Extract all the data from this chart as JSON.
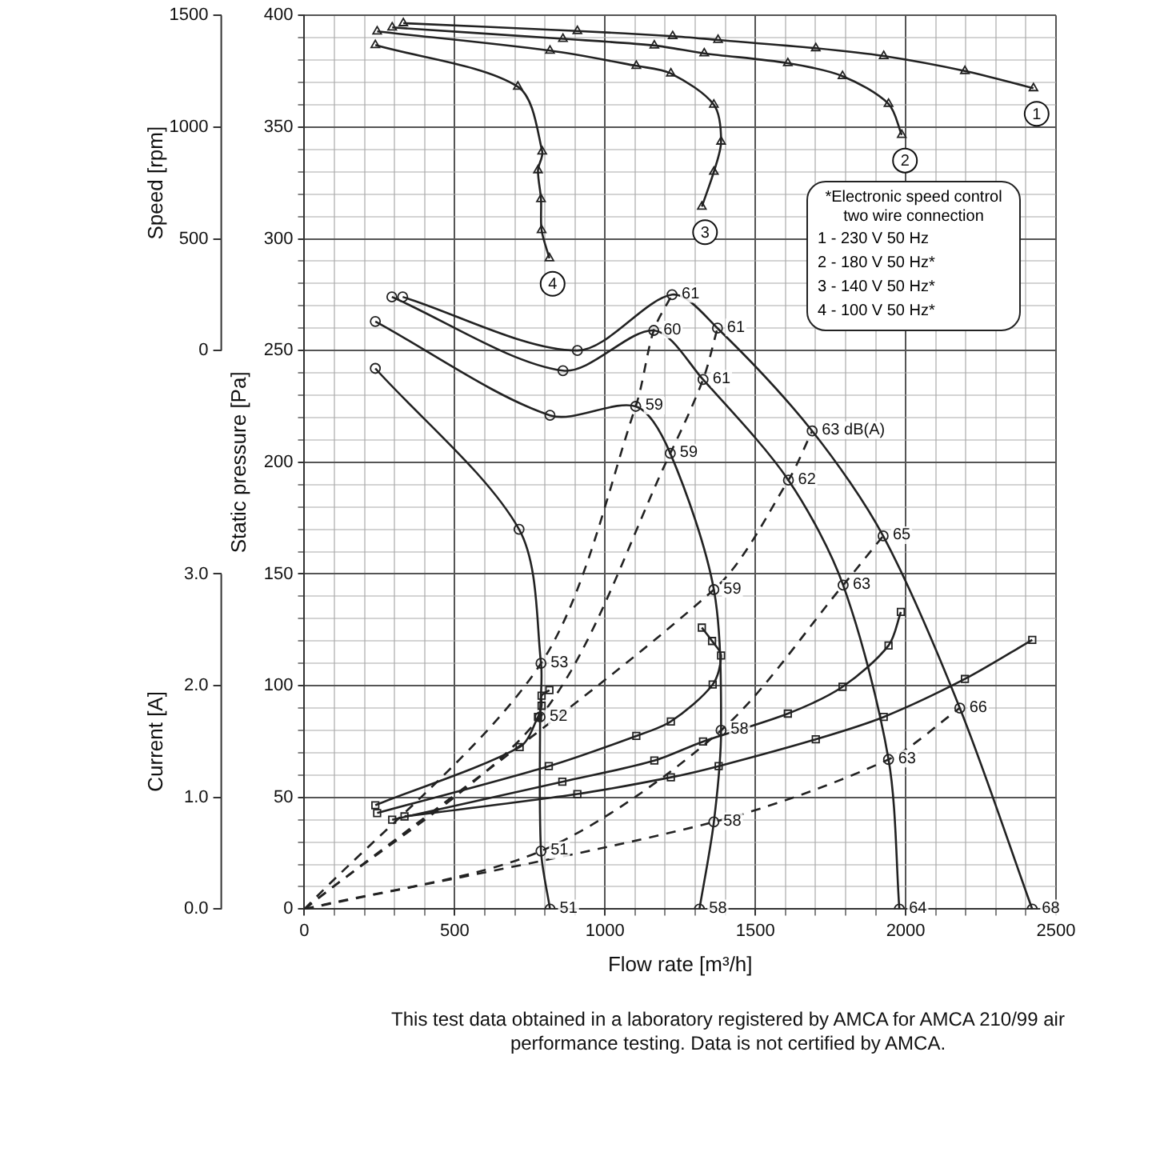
{
  "chart_data": {
    "type": "line",
    "xlabel": "Flow rate [m³/h]",
    "ylabel": "Static pressure [Pa]",
    "y2label": "Speed [rpm]",
    "y3label": "Current [A]",
    "xlim": [
      0,
      2500
    ],
    "xticks": [
      0,
      {
        "value": 100,
        "label": null
      },
      {
        "value": 200,
        "label": null
      },
      {
        "value": 300,
        "label": null
      },
      {
        "value": 400,
        "label": null
      },
      500,
      {
        "value": 600,
        "label": null
      },
      {
        "value": 700,
        "label": null
      },
      {
        "value": 800,
        "label": null
      },
      {
        "value": 900,
        "label": null
      },
      1000,
      {
        "value": 1100,
        "label": null
      },
      {
        "value": 1200,
        "label": null
      },
      {
        "value": 1300,
        "label": null
      },
      {
        "value": 1400,
        "label": null
      },
      1500,
      {
        "value": 1600,
        "label": null
      },
      {
        "value": 1700,
        "label": null
      },
      {
        "value": 1800,
        "label": null
      },
      {
        "value": 1900,
        "label": null
      },
      2000,
      {
        "value": 2100,
        "label": null
      },
      {
        "value": 2200,
        "label": null
      },
      {
        "value": 2300,
        "label": null
      },
      {
        "value": 2400,
        "label": null
      },
      2500
    ],
    "ylim": [
      0,
      400
    ],
    "yticks": [
      0,
      {
        "value": 10,
        "label": null
      },
      {
        "value": 20,
        "label": null
      },
      {
        "value": 30,
        "label": null
      },
      {
        "value": 40,
        "label": null
      },
      50,
      {
        "value": 60,
        "label": null
      },
      {
        "value": 70,
        "label": null
      },
      {
        "value": 80,
        "label": null
      },
      {
        "value": 90,
        "label": null
      },
      100,
      {
        "value": 110,
        "label": null
      },
      {
        "value": 120,
        "label": null
      },
      {
        "value": 130,
        "label": null
      },
      {
        "value": 140,
        "label": null
      },
      150,
      {
        "value": 160,
        "label": null
      },
      {
        "value": 170,
        "label": null
      },
      {
        "value": 180,
        "label": null
      },
      {
        "value": 190,
        "label": null
      },
      200,
      {
        "value": 210,
        "label": null
      },
      {
        "value": 220,
        "label": null
      },
      {
        "value": 230,
        "label": null
      },
      {
        "value": 240,
        "label": null
      },
      250,
      {
        "value": 260,
        "label": null
      },
      {
        "value": 270,
        "label": null
      },
      {
        "value": 280,
        "label": null
      },
      {
        "value": 290,
        "label": null
      },
      300,
      {
        "value": 310,
        "label": null
      },
      {
        "value": 320,
        "label": null
      },
      {
        "value": 330,
        "label": null
      },
      {
        "value": 340,
        "label": null
      },
      350,
      {
        "value": 360,
        "label": null
      },
      {
        "value": 370,
        "label": null
      },
      {
        "value": 380,
        "label": null
      },
      {
        "value": 390,
        "label": null
      },
      400
    ],
    "y2lim": [
      -2500,
      1500
    ],
    "y2ticks": [
      0,
      500,
      1000,
      1500
    ],
    "y3lim": [
      0,
      8
    ],
    "y3ticks": [
      {
        "value": 0,
        "label": "0.0"
      },
      {
        "value": 1,
        "label": "1.0"
      },
      {
        "value": 2,
        "label": "2.0"
      },
      {
        "value": 3,
        "label": "3.0"
      }
    ],
    "grid": true,
    "legend": false,
    "series": [
      {
        "color": "#222222",
        "marker": "circle",
        "line_style": "solid",
        "x": [
          327,
          908,
          1223,
          1374,
          1689,
          1925,
          2180,
          2421
        ],
        "values": [
          274,
          250,
          275,
          260,
          214,
          167,
          90,
          0
        ]
      },
      {
        "color": "#222222",
        "marker": "circle",
        "line_style": "solid",
        "x": [
          291,
          860,
          1162,
          1326,
          1610,
          1792,
          1943,
          1979
        ],
        "values": [
          274,
          241,
          259,
          237,
          192,
          145,
          67,
          0
        ]
      },
      {
        "color": "#222222",
        "marker": "circle",
        "line_style": "solid",
        "x": [
          236,
          817,
          1102,
          1217,
          1362,
          1386,
          1362,
          1314
        ],
        "values": [
          263,
          221,
          225,
          204,
          143,
          80,
          39,
          0
        ]
      },
      {
        "color": "#222222",
        "marker": "circle",
        "line_style": "solid",
        "x": [
          236,
          714,
          787,
          784,
          787,
          817
        ],
        "values": [
          242,
          170,
          110,
          86,
          26,
          0
        ]
      },
      {
        "color": "#222222",
        "marker": "none",
        "line_style": "dashed",
        "x": [
          0,
          787,
          1102,
          1162,
          1223
        ],
        "values": [
          0,
          110,
          225,
          259,
          275
        ]
      },
      {
        "color": "#222222",
        "marker": "none",
        "line_style": "dashed",
        "x": [
          0,
          784,
          1217,
          1326,
          1374
        ],
        "values": [
          0,
          86,
          204,
          237,
          260
        ]
      },
      {
        "color": "#222222",
        "marker": "none",
        "line_style": "dashed",
        "x": [
          0,
          1362,
          1610,
          1689
        ],
        "values": [
          0,
          143,
          192,
          214
        ]
      },
      {
        "color": "#222222",
        "marker": "none",
        "line_style": "dashed",
        "x": [
          0,
          787,
          1386,
          1792,
          1925
        ],
        "values": [
          0,
          26,
          80,
          145,
          167
        ]
      },
      {
        "color": "#222222",
        "marker": "none",
        "line_style": "dashed",
        "x": [
          0,
          1362,
          1943,
          2180
        ],
        "values": [
          0,
          39,
          67,
          90
        ]
      },
      {
        "name": "1",
        "axis": "y2",
        "color": "#222222",
        "marker": "triangle",
        "line_style": "solid",
        "x": [
          329,
          908,
          1225,
          1376,
          1701,
          1927,
          2197,
          2425
        ],
        "values": [
          1465,
          1430,
          1407,
          1390,
          1353,
          1318,
          1251,
          1174
        ]
      },
      {
        "name": "2",
        "axis": "y2",
        "color": "#222222",
        "marker": "triangle",
        "line_style": "solid",
        "x": [
          292,
          860,
          1164,
          1330,
          1608,
          1790,
          1943,
          1987
        ],
        "values": [
          1446,
          1395,
          1365,
          1330,
          1286,
          1228,
          1104,
          965
        ]
      },
      {
        "name": "3",
        "axis": "y2",
        "color": "#222222",
        "marker": "triangle",
        "line_style": "solid",
        "x": [
          242,
          817,
          1104,
          1219,
          1362,
          1386,
          1362,
          1322
        ],
        "values": [
          1428,
          1342,
          1274,
          1240,
          1100,
          935,
          800,
          644
        ]
      },
      {
        "name": "4",
        "axis": "y2",
        "color": "#222222",
        "marker": "triangle",
        "line_style": "solid",
        "x": [
          236,
          710,
          791,
          777,
          787,
          789,
          815
        ],
        "values": [
          1367,
          1181,
          891,
          807,
          678,
          539,
          413
        ]
      },
      {
        "axis": "y3",
        "color": "#222222",
        "marker": "square",
        "line_style": "solid",
        "x": [
          333,
          908,
          1219,
          1378,
          1701,
          1927,
          2197,
          2421
        ],
        "values": [
          0.83,
          1.03,
          1.18,
          1.28,
          1.52,
          1.72,
          2.06,
          2.41
        ]
      },
      {
        "axis": "y3",
        "color": "#222222",
        "marker": "square",
        "line_style": "solid",
        "x": [
          292,
          858,
          1164,
          1326,
          1608,
          1790,
          1943,
          1984
        ],
        "values": [
          0.8,
          1.14,
          1.33,
          1.5,
          1.75,
          1.99,
          2.36,
          2.66
        ]
      },
      {
        "axis": "y3",
        "color": "#222222",
        "marker": "square",
        "line_style": "solid",
        "x": [
          242,
          813,
          1104,
          1219,
          1358,
          1386,
          1356,
          1322
        ],
        "values": [
          0.86,
          1.28,
          1.55,
          1.68,
          2.01,
          2.27,
          2.4,
          2.52
        ]
      },
      {
        "axis": "y3",
        "color": "#222222",
        "marker": "square",
        "line_style": "solid",
        "x": [
          236,
          716,
          777,
          789,
          789,
          815
        ],
        "values": [
          0.93,
          1.45,
          1.72,
          1.82,
          1.91,
          1.96
        ]
      }
    ],
    "annotations": [
      "*Electronic speed control",
      "two wire connection",
      "1 - 230 V 50 Hz",
      "2 - 180 V 50 Hz*",
      "3 - 140 V 50 Hz*",
      "4 - 100 V 50 Hz*",
      {
        "text": "61",
        "x": 1223,
        "y": 275
      },
      {
        "text": "61",
        "x": 1374,
        "y": 260
      },
      {
        "text": "63 dB(A)",
        "x": 1689,
        "y": 214
      },
      {
        "text": "65",
        "x": 1925,
        "y": 167
      },
      {
        "text": "66",
        "x": 2180,
        "y": 90
      },
      {
        "text": "68",
        "x": 2421,
        "y": 0
      },
      {
        "text": "60",
        "x": 1162,
        "y": 259
      },
      {
        "text": "61",
        "x": 1326,
        "y": 237
      },
      {
        "text": "62",
        "x": 1610,
        "y": 192
      },
      {
        "text": "63",
        "x": 1792,
        "y": 145
      },
      {
        "text": "63",
        "x": 1943,
        "y": 67
      },
      {
        "text": "64",
        "x": 1979,
        "y": 0
      },
      {
        "text": "59",
        "x": 1102,
        "y": 225
      },
      {
        "text": "59",
        "x": 1217,
        "y": 204
      },
      {
        "text": "59",
        "x": 1362,
        "y": 143
      },
      {
        "text": "58",
        "x": 1386,
        "y": 80
      },
      {
        "text": "58",
        "x": 1362,
        "y": 39
      },
      {
        "text": "58",
        "x": 1314,
        "y": 0
      },
      {
        "text": "53",
        "x": 787,
        "y": 110
      },
      {
        "text": "52",
        "x": 784,
        "y": 86
      },
      {
        "text": "51",
        "x": 787,
        "y": 26
      },
      {
        "text": "51",
        "x": 817,
        "y": 0
      },
      "This test data obtained in a laboratory registered by AMCA for AMCA 210/99 air performance testing. Data is not certified by AMCA."
    ]
  }
}
